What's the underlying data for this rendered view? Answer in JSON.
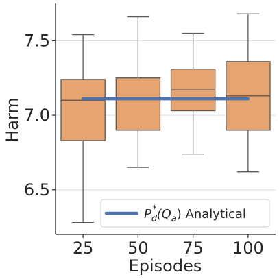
{
  "chart_data": {
    "type": "box",
    "title": "",
    "xlabel": "Episodes",
    "ylabel": "Harm",
    "ylim": [
      6.2,
      7.75
    ],
    "yticks": [
      "6.5",
      "7.0",
      "7.5"
    ],
    "ytick_values": [
      6.5,
      7.0,
      7.5
    ],
    "grid": "horizontal",
    "categories": [
      "25",
      "50",
      "75",
      "100"
    ],
    "boxes": [
      {
        "category": "25",
        "whisker_low": 6.28,
        "q1": 6.83,
        "median": 7.1,
        "q3": 7.24,
        "whisker_high": 7.54
      },
      {
        "category": "50",
        "whisker_low": 6.65,
        "q1": 6.9,
        "median": 7.11,
        "q3": 7.25,
        "whisker_high": 7.66
      },
      {
        "category": "75",
        "whisker_low": 6.74,
        "q1": 7.03,
        "median": 7.17,
        "q3": 7.31,
        "whisker_high": 7.55
      },
      {
        "category": "100",
        "whisker_low": 6.62,
        "q1": 6.9,
        "median": 7.13,
        "q3": 7.36,
        "whisker_high": 7.68
      }
    ],
    "series": [
      {
        "name": "P_d^*(Q_a) Analytical",
        "values": [
          7.11,
          7.11,
          7.11,
          7.11
        ]
      }
    ],
    "legend": {
      "placement": "lower-right",
      "label_main": "P",
      "label_sub_d": "d",
      "label_sup_star": "*",
      "label_paren_open": "(Q",
      "label_sub_a": "a",
      "label_rest": ") Analytical"
    },
    "colors": {
      "box_fill": "#e5a470",
      "box_edge": "#595959",
      "line": "#4c72b0",
      "grid": "#e0e0e0",
      "axis": "#262626"
    }
  }
}
